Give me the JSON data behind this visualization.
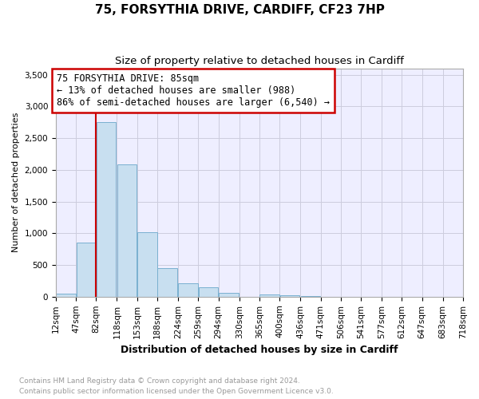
{
  "title": "75, FORSYTHIA DRIVE, CARDIFF, CF23 7HP",
  "subtitle": "Size of property relative to detached houses in Cardiff",
  "xlabel": "Distribution of detached houses by size in Cardiff",
  "ylabel": "Number of detached properties",
  "footnote1": "Contains HM Land Registry data © Crown copyright and database right 2024.",
  "footnote2": "Contains public sector information licensed under the Open Government Licence v3.0.",
  "annotation_line1": "75 FORSYTHIA DRIVE: 85sqm",
  "annotation_line2": "← 13% of detached houses are smaller (988)",
  "annotation_line3": "86% of semi-detached houses are larger (6,540) →",
  "bar_edges": [
    12,
    47,
    82,
    118,
    153,
    188,
    224,
    259,
    294,
    330,
    365,
    400,
    436,
    471,
    506,
    541,
    577,
    612,
    647,
    683,
    718
  ],
  "bar_heights": [
    50,
    850,
    2750,
    2080,
    1020,
    450,
    210,
    145,
    55,
    0,
    35,
    20,
    15,
    0,
    0,
    0,
    0,
    0,
    0,
    0
  ],
  "bar_color": "#c8dff0",
  "bar_edge_color": "#7ab0d0",
  "vline_color": "#cc0000",
  "vline_x": 82,
  "annotation_box_edgecolor": "#cc0000",
  "ylim": [
    0,
    3600
  ],
  "yticks": [
    0,
    500,
    1000,
    1500,
    2000,
    2500,
    3000,
    3500
  ],
  "grid_color": "#ccccdd",
  "plot_bg_color": "#eeeeff",
  "title_fontsize": 11,
  "subtitle_fontsize": 9.5,
  "xlabel_fontsize": 9,
  "ylabel_fontsize": 8,
  "footnote_fontsize": 6.5,
  "tick_fontsize": 7.5,
  "annotation_fontsize": 8.5
}
